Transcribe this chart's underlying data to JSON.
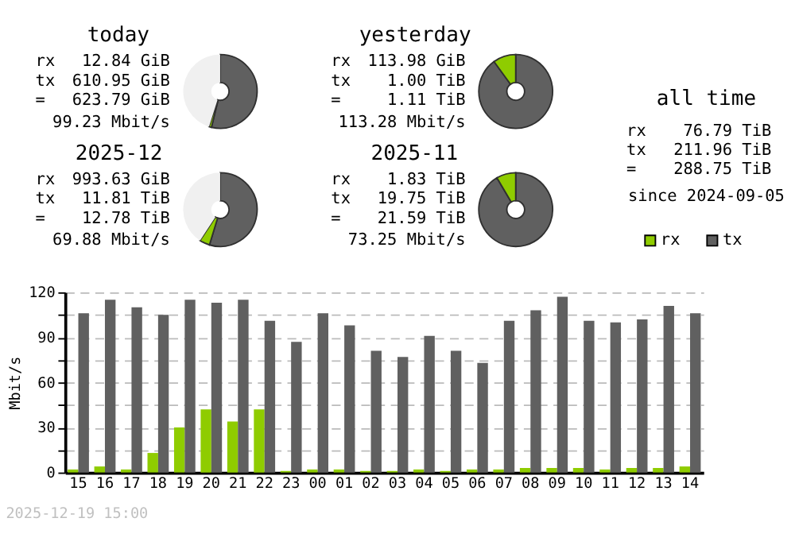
{
  "chart_data": [
    {
      "type": "donut",
      "title": "today",
      "categories": [
        null,
        null,
        null
      ],
      "values": [
        53.8,
        1.1,
        45.1
      ],
      "colors": [
        "#606060",
        "#8fcc00",
        "#f0f0f0"
      ],
      "annotations": [
        "rx 12.84 GiB",
        "tx 610.95 GiB",
        "= 623.79 GiB",
        "99.23 Mbit/s"
      ]
    },
    {
      "type": "donut",
      "title": "yesterday",
      "categories": [
        null,
        null,
        null
      ],
      "values": [
        90.0,
        10.0,
        0
      ],
      "colors": [
        "#606060",
        "#8fcc00",
        "#f0f0f0"
      ],
      "annotations": [
        "rx 113.98 GiB",
        "tx 1.00 TiB",
        "= 1.11 TiB",
        "113.28 Mbit/s"
      ]
    },
    {
      "type": "donut",
      "title": "2025-12",
      "categories": [
        null,
        null,
        null
      ],
      "values": [
        54.7,
        4.5,
        40.8
      ],
      "colors": [
        "#606060",
        "#8fcc00",
        "#f0f0f0"
      ],
      "annotations": [
        "rx 993.63 GiB",
        "tx 11.81 TiB",
        "= 12.78 TiB",
        "69.88 Mbit/s"
      ]
    },
    {
      "type": "donut",
      "title": "2025-11",
      "categories": [
        null,
        null,
        null
      ],
      "values": [
        91.5,
        8.5,
        0
      ],
      "colors": [
        "#606060",
        "#8fcc00",
        "#f0f0f0"
      ],
      "annotations": [
        "rx 1.83 TiB",
        "tx 19.75 TiB",
        "= 21.59 TiB",
        "73.25 Mbit/s"
      ]
    },
    {
      "type": "other",
      "title": "all time",
      "annotations": [
        "rx 76.79 TiB",
        "tx 211.96 TiB",
        "= 288.75 TiB",
        "since 2024-09-05"
      ]
    },
    {
      "type": "bar",
      "ylabel": "Mbit/s",
      "categories": [
        "15",
        "16",
        "17",
        "18",
        "19",
        "20",
        "21",
        "22",
        "23",
        "00",
        "01",
        "02",
        "03",
        "04",
        "05",
        "06",
        "07",
        "08",
        "09",
        "10",
        "11",
        "12",
        "13",
        "14"
      ],
      "series": [
        {
          "name": "rx",
          "color": "#8fcc00",
          "values": [
            2,
            4,
            2,
            13,
            30,
            42,
            34,
            42,
            1,
            2,
            2,
            1,
            1,
            2,
            1,
            2,
            2,
            3,
            3,
            3,
            2,
            3,
            3,
            4
          ]
        },
        {
          "name": "tx",
          "color": "#606060",
          "values": [
            106,
            115,
            110,
            105,
            115,
            113,
            115,
            101,
            87,
            106,
            98,
            81,
            77,
            91,
            81,
            73,
            101,
            108,
            117,
            101,
            100,
            102,
            111,
            106
          ]
        }
      ],
      "ylim": [
        0,
        120
      ],
      "yticks": [
        0,
        {
          "value": 15,
          "label": null
        },
        30,
        {
          "value": 45,
          "label": null
        },
        60,
        {
          "value": 75,
          "label": null
        },
        90,
        {
          "value": 105,
          "label": null
        },
        120
      ],
      "grid": "y",
      "legend": "top right",
      "annotations": [
        "2025-12-19 15:00"
      ]
    }
  ]
}
